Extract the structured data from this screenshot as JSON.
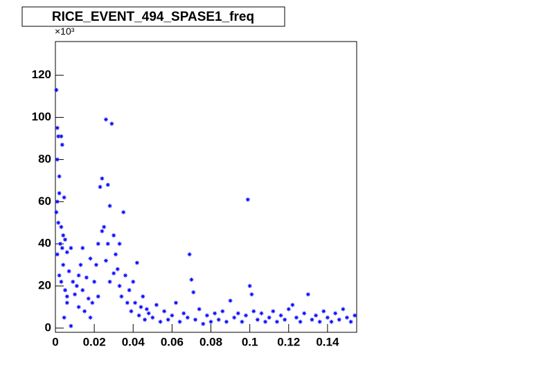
{
  "chart_data": {
    "type": "scatter",
    "title": "RICE_EVENT_494_SPASE1_freq",
    "y_multiplier": "×10³",
    "color": "#0000ff",
    "xlim": [
      0,
      0.155
    ],
    "ylim": [
      -2,
      136
    ],
    "xticks": [
      0,
      0.02,
      0.04,
      0.06,
      0.08,
      0.1,
      0.12,
      0.14
    ],
    "yticks": [
      0,
      20,
      40,
      60,
      80,
      100,
      120
    ],
    "x": [
      0.0005,
      0.001,
      0.001,
      0.0015,
      0.002,
      0.003,
      0.0035,
      0.001,
      0.002,
      0.0045,
      0.0005,
      0.0015,
      0.003,
      0.004,
      0.0025,
      0.0035,
      0.001,
      0.005,
      0.006,
      0.002,
      0.003,
      0.004,
      0.005,
      0.006,
      0.007,
      0.008,
      0.009,
      0.0045,
      0.006,
      0.008,
      0.01,
      0.011,
      0.012,
      0.013,
      0.014,
      0.015,
      0.016,
      0.017,
      0.018,
      0.019,
      0.02,
      0.021,
      0.022,
      0.023,
      0.024,
      0.025,
      0.026,
      0.027,
      0.028,
      0.029,
      0.03,
      0.031,
      0.032,
      0.033,
      0.034,
      0.035,
      0.036,
      0.037,
      0.038,
      0.039,
      0.04,
      0.041,
      0.042,
      0.043,
      0.044,
      0.045,
      0.046,
      0.047,
      0.048,
      0.05,
      0.052,
      0.054,
      0.056,
      0.058,
      0.06,
      0.062,
      0.064,
      0.066,
      0.068,
      0.069,
      0.07,
      0.071,
      0.072,
      0.074,
      0.076,
      0.078,
      0.08,
      0.082,
      0.084,
      0.086,
      0.088,
      0.09,
      0.092,
      0.094,
      0.096,
      0.098,
      0.099,
      0.1,
      0.101,
      0.102,
      0.104,
      0.106,
      0.108,
      0.11,
      0.112,
      0.114,
      0.116,
      0.118,
      0.12,
      0.122,
      0.124,
      0.126,
      0.128,
      0.13,
      0.132,
      0.134,
      0.136,
      0.138,
      0.14,
      0.142,
      0.144,
      0.146,
      0.148,
      0.15,
      0.152,
      0.154,
      0.024,
      0.027,
      0.03,
      0.026,
      0.022,
      0.018,
      0.014,
      0.012,
      0.028,
      0.033
    ],
    "values": [
      113,
      95,
      80,
      91,
      72,
      91,
      87,
      60,
      64,
      62,
      55,
      50,
      48,
      44,
      40,
      38,
      35,
      42,
      36,
      25,
      22,
      30,
      18,
      15,
      27,
      38,
      22,
      5,
      12,
      1,
      16,
      20,
      10,
      30,
      18,
      8,
      24,
      14,
      33,
      12,
      22,
      30,
      40,
      67,
      71,
      48,
      99,
      68,
      58,
      97,
      44,
      35,
      28,
      20,
      15,
      55,
      25,
      12,
      18,
      8,
      22,
      12,
      31,
      6,
      10,
      15,
      4,
      9,
      7,
      5,
      11,
      3,
      8,
      4,
      6,
      12,
      3,
      7,
      5,
      35,
      23,
      17,
      4,
      9,
      2,
      6,
      3,
      7,
      4,
      8,
      3,
      13,
      5,
      7,
      3,
      6,
      61,
      20,
      16,
      8,
      4,
      7,
      3,
      5,
      8,
      3,
      6,
      4,
      9,
      11,
      5,
      3,
      7,
      16,
      4,
      6,
      3,
      8,
      5,
      3,
      7,
      4,
      9,
      5,
      3,
      6,
      46,
      40,
      26,
      32,
      15,
      5,
      38,
      25,
      22,
      40
    ]
  }
}
